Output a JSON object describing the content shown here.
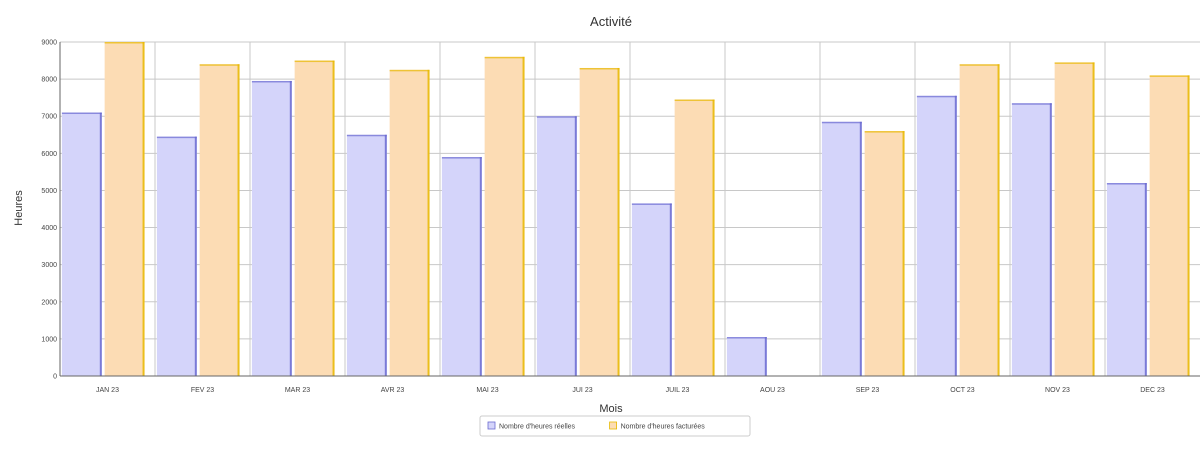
{
  "chart_data": {
    "type": "bar",
    "title": "Activité",
    "xlabel": "Mois",
    "ylabel": "Heures",
    "ylim": [
      0,
      9000
    ],
    "yticks": [
      0,
      1000,
      2000,
      3000,
      4000,
      5000,
      6000,
      7000,
      8000,
      9000
    ],
    "grid": true,
    "legend_position": "bottom-center",
    "categories": [
      "JAN 23",
      "FEV 23",
      "MAR 23",
      "AVR 23",
      "MAI 23",
      "JUI 23",
      "JUIL 23",
      "AOU 23",
      "SEP 23",
      "OCT 23",
      "NOV 23",
      "DEC 23"
    ],
    "series": [
      {
        "name": "Nombre d'heures réelles",
        "color": "#d4d4fa",
        "edge_color": "#6a6ad0",
        "values": [
          7100,
          6450,
          7950,
          6500,
          5900,
          7000,
          4650,
          1050,
          6850,
          7550,
          7350,
          5200
        ]
      },
      {
        "name": "Nombre d'heures facturées",
        "color": "#fcdcb4",
        "edge_color": "#e8b800",
        "values": [
          9000,
          8400,
          8500,
          8250,
          8600,
          8300,
          7450,
          0,
          6600,
          8400,
          8450,
          8100
        ]
      }
    ]
  }
}
